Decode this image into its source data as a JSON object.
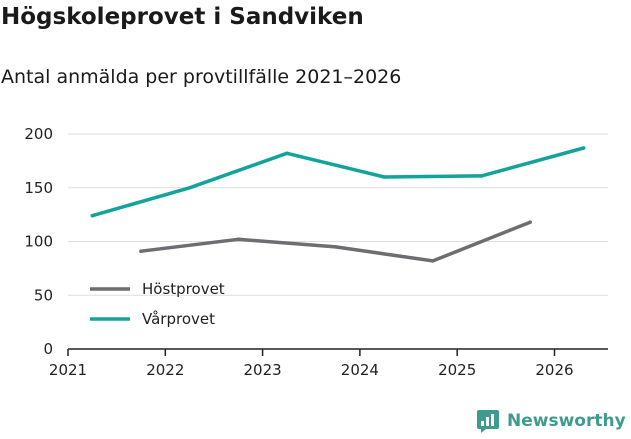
{
  "header": {
    "title": "Högskoleprovet i Sandviken"
  },
  "colors": {
    "host": "#6d6d72",
    "var": "#12a39a",
    "grid": "#dddddd",
    "axis": "#222222",
    "brand": "#3e9b8e"
  },
  "brand": {
    "name": "Newsworthy",
    "icon": "bar-chart-logo-icon"
  },
  "chart_data": {
    "type": "line",
    "title": "Antal anmälda per provtillfälle 2021–2026",
    "xlabel": "",
    "ylabel": "",
    "xlim": [
      2021,
      2026.55
    ],
    "ylim": [
      0,
      200
    ],
    "grid": true,
    "x_ticks": [
      2021,
      2022,
      2023,
      2024,
      2025,
      2026
    ],
    "y_ticks": [
      0,
      50,
      100,
      150,
      200
    ],
    "legend_position": "bottom-left",
    "series": [
      {
        "name": "Höstprovet",
        "color_key": "host",
        "x": [
          2021.75,
          2022.75,
          2023.75,
          2024.75,
          2025.75
        ],
        "values": [
          91,
          102,
          95,
          82,
          118
        ]
      },
      {
        "name": "Vårprovet",
        "color_key": "var",
        "x": [
          2021.25,
          2022.25,
          2023.25,
          2024.25,
          2025.25,
          2026.3
        ],
        "values": [
          124,
          150,
          182,
          160,
          161,
          187
        ]
      }
    ]
  }
}
